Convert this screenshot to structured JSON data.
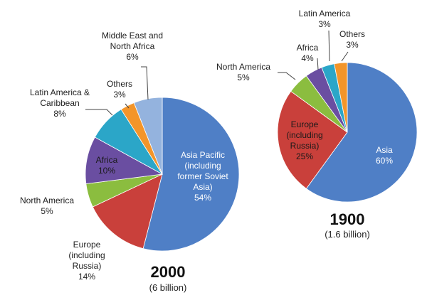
{
  "chart_data": [
    {
      "type": "pie",
      "title": "2000",
      "subtitle": "(6 billion)",
      "slices": [
        {
          "label": "Asia Pacific (including former Soviet Asia)",
          "lines": [
            "Asia Pacific",
            "(including",
            "former Soviet",
            "Asia)"
          ],
          "value": 54,
          "value_label": "54%",
          "color": "#4f7fc6"
        },
        {
          "label": "Europe (including Russia)",
          "lines": [
            "Europe",
            "(including",
            "Russia)"
          ],
          "value": 14,
          "value_label": "14%",
          "color": "#c9403b"
        },
        {
          "label": "North America",
          "lines": [
            "North America"
          ],
          "value": 5,
          "value_label": "5%",
          "color": "#8bbd3f"
        },
        {
          "label": "Africa",
          "lines": [
            "Africa"
          ],
          "value": 10,
          "value_label": "10%",
          "color": "#6a4ea1"
        },
        {
          "label": "Latin America & Caribbean",
          "lines": [
            "Latin America &",
            "Caribbean"
          ],
          "value": 8,
          "value_label": "8%",
          "color": "#2ba6c8"
        },
        {
          "label": "Others",
          "lines": [
            "Others"
          ],
          "value": 3,
          "value_label": "3%",
          "color": "#f3952a"
        },
        {
          "label": "Middle East and North Africa",
          "lines": [
            "Middle East  and",
            "North Africa"
          ],
          "value": 6,
          "value_label": "6%",
          "color": "#94b3de"
        }
      ]
    },
    {
      "type": "pie",
      "title": "1900",
      "subtitle": "(1.6 billion)",
      "slices": [
        {
          "label": "Asia",
          "lines": [
            "Asia"
          ],
          "value": 60,
          "value_label": "60%",
          "color": "#4f7fc6"
        },
        {
          "label": "Europe (including Russia)",
          "lines": [
            "Europe",
            "(including",
            "Russia)"
          ],
          "value": 25,
          "value_label": "25%",
          "color": "#c9403b"
        },
        {
          "label": "North America",
          "lines": [
            "North America"
          ],
          "value": 5,
          "value_label": "5%",
          "color": "#8bbd3f"
        },
        {
          "label": "Africa",
          "lines": [
            "Africa"
          ],
          "value": 4,
          "value_label": "4%",
          "color": "#6a4ea1"
        },
        {
          "label": "Latin America",
          "lines": [
            "Latin America"
          ],
          "value": 3,
          "value_label": "3%",
          "color": "#2ba6c8"
        },
        {
          "label": "Others",
          "lines": [
            "Others"
          ],
          "value": 3,
          "value_label": "3%",
          "color": "#f3952a"
        }
      ]
    }
  ]
}
